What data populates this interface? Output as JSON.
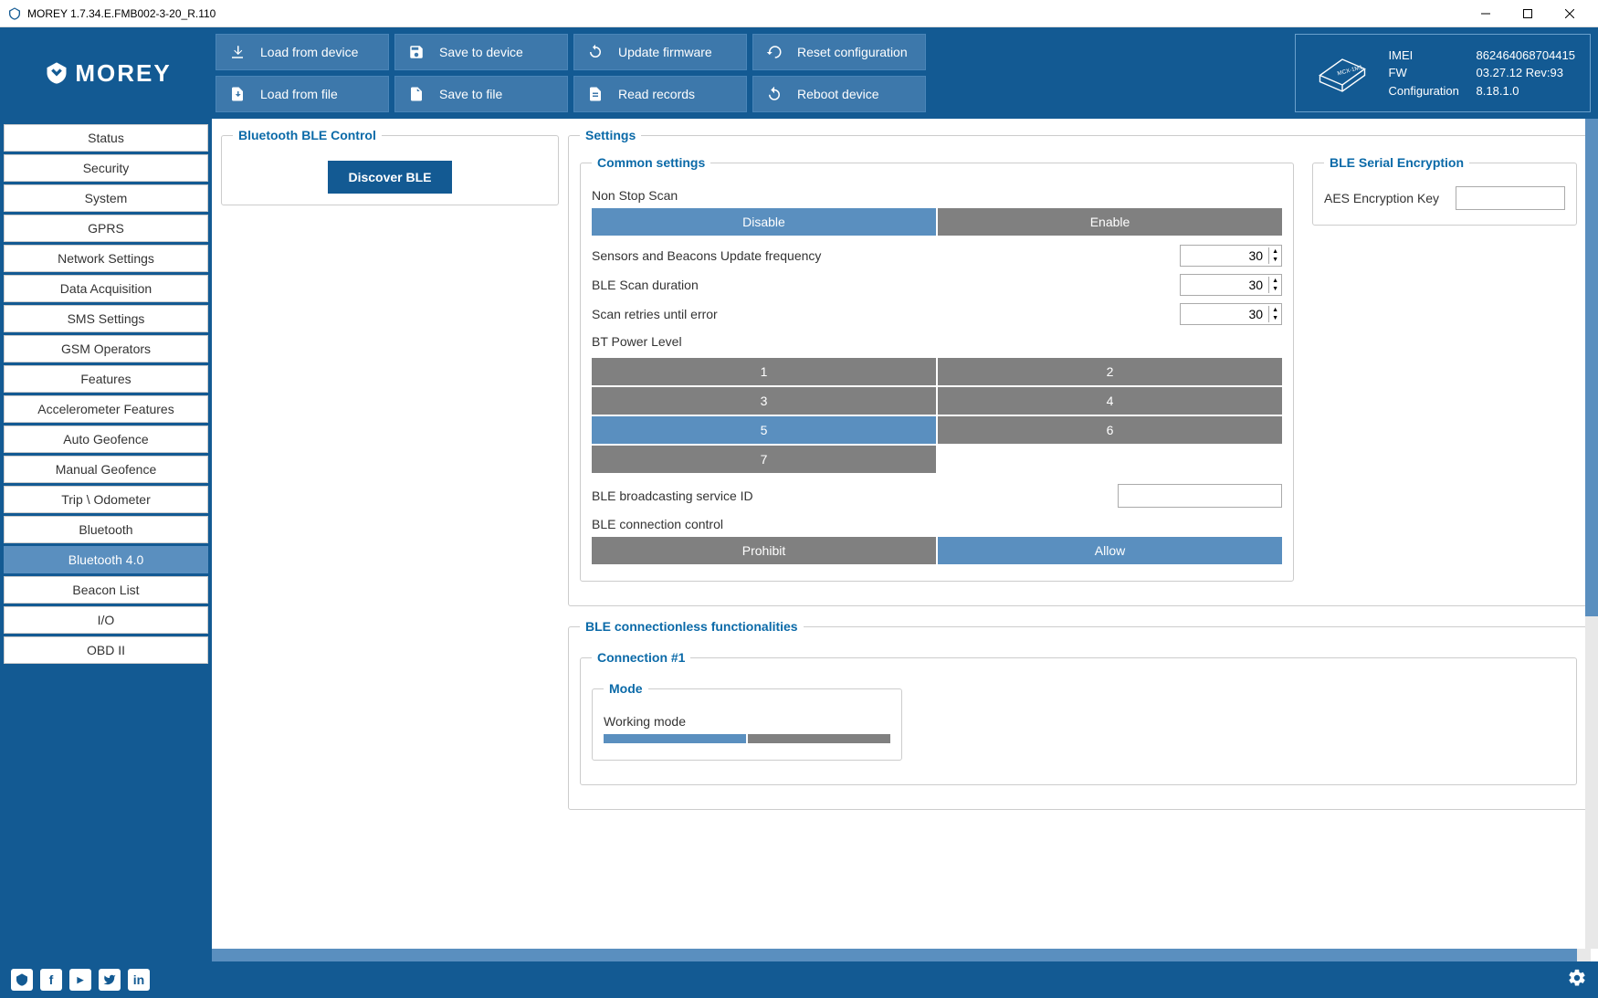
{
  "window": {
    "title": "MOREY 1.7.34.E.FMB002-3-20_R.110"
  },
  "brand": "MOREY",
  "toolbar": {
    "load_device": "Load from device",
    "save_device": "Save to device",
    "update_fw": "Update firmware",
    "reset_cfg": "Reset configuration",
    "load_file": "Load from file",
    "save_file": "Save to file",
    "read_records": "Read records",
    "reboot": "Reboot device"
  },
  "device": {
    "imei_label": "IMEI",
    "imei": "862464068704415",
    "fw_label": "FW",
    "fw": "03.27.12 Rev:93",
    "cfg_label": "Configuration",
    "cfg": "8.18.1.0"
  },
  "nav": {
    "items": [
      "Status",
      "Security",
      "System",
      "GPRS",
      "Network Settings",
      "Data Acquisition",
      "SMS Settings",
      "GSM Operators",
      "Features",
      "Accelerometer Features",
      "Auto Geofence",
      "Manual Geofence",
      "Trip \\ Odometer",
      "Bluetooth",
      "Bluetooth 4.0",
      "Beacon List",
      "I/O",
      "OBD II"
    ],
    "active_index": 14
  },
  "ble_control": {
    "title": "Bluetooth BLE Control",
    "discover": "Discover BLE"
  },
  "settings": {
    "title": "Settings",
    "common": {
      "title": "Common settings",
      "nonstop_label": "Non Stop Scan",
      "disable": "Disable",
      "enable": "Enable",
      "nonstop_selected": "Disable",
      "update_freq_label": "Sensors and Beacons Update frequency",
      "update_freq": "30",
      "scan_duration_label": "BLE Scan duration",
      "scan_duration": "30",
      "retries_label": "Scan retries until error",
      "retries": "30",
      "power_label": "BT Power Level",
      "power_options": [
        "1",
        "2",
        "3",
        "4",
        "5",
        "6",
        "7"
      ],
      "power_selected": "5",
      "broadcast_label": "BLE broadcasting service ID",
      "broadcast_value": "",
      "conn_control_label": "BLE connection control",
      "prohibit": "Prohibit",
      "allow": "Allow",
      "conn_selected": "Allow"
    },
    "encryption": {
      "title": "BLE Serial Encryption",
      "key_label": "AES Encryption Key",
      "key_value": ""
    }
  },
  "connless": {
    "title": "BLE connectionless functionalities",
    "conn1": {
      "title": "Connection #1",
      "mode_title": "Mode",
      "working_mode_label": "Working mode"
    }
  },
  "colors": {
    "header": "#135a93",
    "btn": "#3d78ab",
    "selected": "#5a8fbf",
    "unselected": "#808080",
    "legend": "#0b6aa8"
  }
}
